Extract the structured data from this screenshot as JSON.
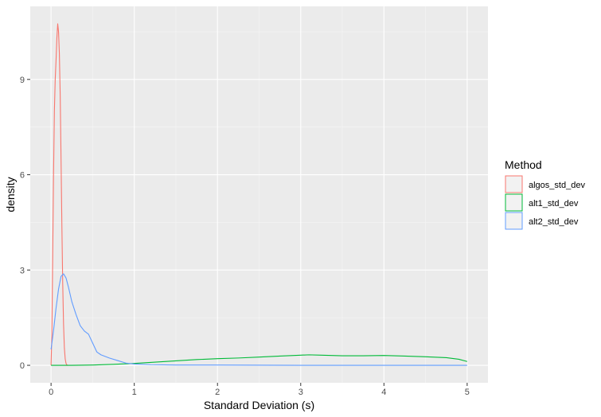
{
  "chart_data": {
    "type": "line",
    "title": "",
    "xlabel": "Standard Deviation (s)",
    "ylabel": "density",
    "xlim": [
      -0.25,
      5.25
    ],
    "ylim": [
      -0.55,
      11.3
    ],
    "x_ticks": [
      0,
      1,
      2,
      3,
      4,
      5
    ],
    "y_ticks": [
      0,
      3,
      6,
      9
    ],
    "grid": true,
    "legend": {
      "title": "Method",
      "position": "right"
    },
    "series": [
      {
        "name": "algos_std_dev",
        "color": "#F8766D",
        "points": [
          [
            0.0,
            0.0
          ],
          [
            0.01,
            1.0
          ],
          [
            0.02,
            3.5
          ],
          [
            0.03,
            6.0
          ],
          [
            0.04,
            8.0
          ],
          [
            0.05,
            9.0
          ],
          [
            0.06,
            9.6
          ],
          [
            0.07,
            10.3
          ],
          [
            0.08,
            10.75
          ],
          [
            0.09,
            10.5
          ],
          [
            0.1,
            9.8
          ],
          [
            0.11,
            8.5
          ],
          [
            0.12,
            6.5
          ],
          [
            0.13,
            4.4
          ],
          [
            0.14,
            2.6
          ],
          [
            0.15,
            1.3
          ],
          [
            0.16,
            0.55
          ],
          [
            0.17,
            0.2
          ],
          [
            0.18,
            0.06
          ],
          [
            0.19,
            0.01
          ],
          [
            0.2,
            0.0
          ]
        ]
      },
      {
        "name": "alt1_std_dev",
        "color": "#00BA38",
        "points": [
          [
            0.0,
            0.0
          ],
          [
            0.25,
            0.0
          ],
          [
            0.5,
            0.01
          ],
          [
            0.75,
            0.03
          ],
          [
            1.0,
            0.06
          ],
          [
            1.25,
            0.1
          ],
          [
            1.5,
            0.14
          ],
          [
            1.75,
            0.18
          ],
          [
            2.0,
            0.21
          ],
          [
            2.25,
            0.23
          ],
          [
            2.5,
            0.26
          ],
          [
            2.75,
            0.29
          ],
          [
            3.0,
            0.32
          ],
          [
            3.1,
            0.33
          ],
          [
            3.25,
            0.32
          ],
          [
            3.5,
            0.3
          ],
          [
            3.75,
            0.3
          ],
          [
            4.0,
            0.31
          ],
          [
            4.25,
            0.29
          ],
          [
            4.5,
            0.27
          ],
          [
            4.75,
            0.24
          ],
          [
            4.9,
            0.19
          ],
          [
            5.0,
            0.12
          ]
        ]
      },
      {
        "name": "alt2_std_dev",
        "color": "#619CFF",
        "points": [
          [
            0.0,
            0.5
          ],
          [
            0.03,
            1.1
          ],
          [
            0.06,
            1.8
          ],
          [
            0.09,
            2.4
          ],
          [
            0.12,
            2.8
          ],
          [
            0.15,
            2.88
          ],
          [
            0.18,
            2.75
          ],
          [
            0.21,
            2.45
          ],
          [
            0.25,
            2.0
          ],
          [
            0.3,
            1.6
          ],
          [
            0.35,
            1.25
          ],
          [
            0.4,
            1.08
          ],
          [
            0.45,
            0.98
          ],
          [
            0.5,
            0.7
          ],
          [
            0.55,
            0.42
          ],
          [
            0.6,
            0.33
          ],
          [
            0.7,
            0.23
          ],
          [
            0.8,
            0.15
          ],
          [
            0.9,
            0.07
          ],
          [
            1.0,
            0.04
          ],
          [
            1.2,
            0.02
          ],
          [
            1.5,
            0.01
          ],
          [
            2.0,
            0.01
          ],
          [
            3.0,
            0.0
          ],
          [
            4.0,
            0.0
          ],
          [
            5.0,
            0.0
          ]
        ]
      }
    ]
  }
}
